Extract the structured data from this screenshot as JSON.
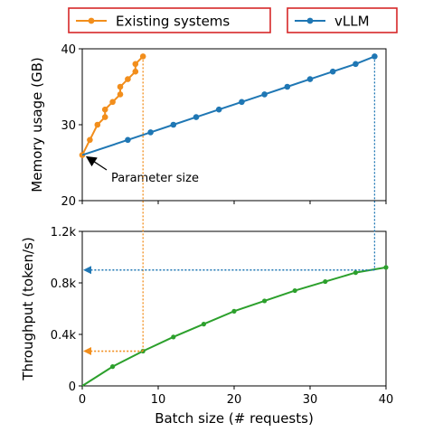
{
  "chart_data": [
    {
      "type": "line",
      "ylabel": "Memory usage (GB)",
      "ylim": [
        20,
        40
      ],
      "xlim": [
        0,
        40
      ],
      "yticks": [
        "20",
        "30",
        "40"
      ],
      "series": [
        {
          "name": "Existing systems",
          "color": "#f28e1c",
          "x": [
            0,
            1,
            2,
            3,
            3,
            4,
            5,
            5,
            6,
            7,
            7,
            8
          ],
          "y": [
            26,
            28,
            30,
            31,
            32,
            33,
            34,
            35,
            36,
            37,
            38,
            39
          ]
        },
        {
          "name": "vLLM",
          "color": "#1f77b4",
          "x": [
            0,
            6,
            9,
            12,
            15,
            18,
            21,
            24,
            27,
            30,
            33,
            36,
            38.5
          ],
          "y": [
            26,
            28,
            29,
            30,
            31,
            32,
            33,
            34,
            35,
            36,
            37,
            38,
            39
          ]
        }
      ],
      "annotations": [
        {
          "text": "Parameter size",
          "arrow_to": [
            0,
            26
          ]
        }
      ]
    },
    {
      "type": "line",
      "xlabel": "Batch size (# requests)",
      "ylabel": "Throughput (token/s)",
      "xlim": [
        0,
        40
      ],
      "ylim": [
        0,
        1200
      ],
      "xticks": [
        "0",
        "10",
        "20",
        "30",
        "40"
      ],
      "yticks": [
        "0",
        "0.4k",
        "0.8k",
        "1.2k"
      ],
      "series": [
        {
          "color": "#2ca02c",
          "x": [
            0,
            4,
            8,
            12,
            16,
            20,
            24,
            28,
            32,
            36,
            40
          ],
          "y": [
            0,
            150,
            270,
            380,
            480,
            580,
            660,
            740,
            810,
            880,
            920
          ]
        }
      ],
      "reference_lines": [
        {
          "color": "#f28e1c",
          "from_x": 8,
          "y": 270
        },
        {
          "color": "#1f77b4",
          "from_x": 38.5,
          "y": 900
        }
      ]
    }
  ],
  "legend": [
    {
      "label": "Existing systems",
      "color": "#f28e1c"
    },
    {
      "label": "vLLM",
      "color": "#1f77b4"
    }
  ],
  "legend_border_color": "#d62728"
}
